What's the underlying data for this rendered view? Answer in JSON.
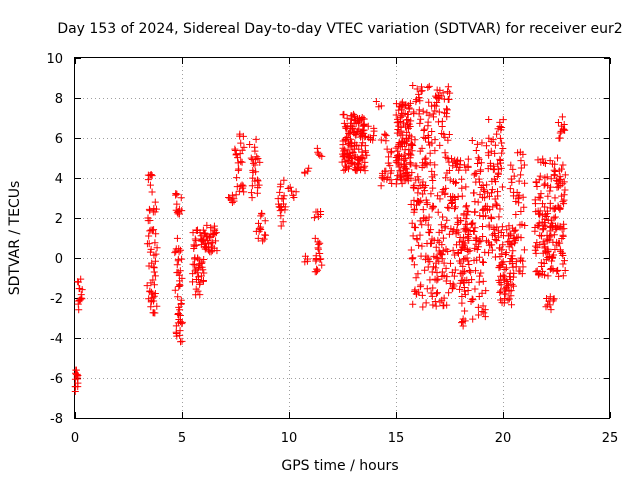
{
  "chart_data": {
    "type": "scatter",
    "title": "Day 153 of 2024, Sidereal Day-to-day VTEC variation (SDTVAR) for receiver eur2",
    "xlabel": "GPS time / hours",
    "ylabel": "SDTVAR / TECUs",
    "xlim": [
      0,
      25
    ],
    "ylim": [
      -8,
      10
    ],
    "xticks": [
      0,
      5,
      10,
      15,
      20,
      25
    ],
    "yticks": [
      -8,
      -6,
      -4,
      -2,
      0,
      2,
      4,
      6,
      8,
      10
    ],
    "grid": true,
    "marker": "+",
    "color": "#ff0000",
    "series": [
      {
        "name": "SDTVAR",
        "clusters": [
          {
            "x": [
              0.0,
              0.15
            ],
            "y": [
              -6.8,
              -5.6
            ],
            "n": 14
          },
          {
            "x": [
              0.1,
              0.35
            ],
            "y": [
              -2.6,
              -0.9
            ],
            "n": 14
          },
          {
            "x": [
              3.4,
              3.8
            ],
            "y": [
              -2.8,
              4.3
            ],
            "n": 60
          },
          {
            "x": [
              4.7,
              5.0
            ],
            "y": [
              -4.3,
              3.3
            ],
            "n": 55
          },
          {
            "x": [
              5.5,
              6.1
            ],
            "y": [
              -1.9,
              1.4
            ],
            "n": 60
          },
          {
            "x": [
              6.1,
              6.6
            ],
            "y": [
              0.3,
              2.2
            ],
            "n": 30
          },
          {
            "x": [
              7.2,
              7.5
            ],
            "y": [
              2.3,
              3.3
            ],
            "n": 8
          },
          {
            "x": [
              7.5,
              7.9
            ],
            "y": [
              3.3,
              6.2
            ],
            "n": 25
          },
          {
            "x": [
              8.2,
              8.6
            ],
            "y": [
              3.0,
              6.0
            ],
            "n": 25
          },
          {
            "x": [
              8.5,
              8.9
            ],
            "y": [
              0.8,
              2.3
            ],
            "n": 15
          },
          {
            "x": [
              9.5,
              9.8
            ],
            "y": [
              1.5,
              3.9
            ],
            "n": 20
          },
          {
            "x": [
              10.0,
              10.3
            ],
            "y": [
              3.0,
              3.6
            ],
            "n": 6
          },
          {
            "x": [
              10.7,
              10.9
            ],
            "y": [
              -0.2,
              0.2
            ],
            "n": 4
          },
          {
            "x": [
              10.7,
              10.9
            ],
            "y": [
              4.2,
              4.6
            ],
            "n": 4
          },
          {
            "x": [
              11.2,
              11.5
            ],
            "y": [
              -0.7,
              1.0
            ],
            "n": 18
          },
          {
            "x": [
              11.2,
              11.5
            ],
            "y": [
              2.0,
              2.5
            ],
            "n": 6
          },
          {
            "x": [
              11.3,
              11.5
            ],
            "y": [
              5.0,
              5.5
            ],
            "n": 5
          },
          {
            "x": [
              12.5,
              13.6
            ],
            "y": [
              4.3,
              7.2
            ],
            "n": 150
          },
          {
            "x": [
              13.7,
              14.0
            ],
            "y": [
              5.8,
              6.6
            ],
            "n": 8
          },
          {
            "x": [
              14.1,
              14.3
            ],
            "y": [
              7.4,
              7.9
            ],
            "n": 3
          },
          {
            "x": [
              14.3,
              14.8
            ],
            "y": [
              3.6,
              6.2
            ],
            "n": 25
          },
          {
            "x": [
              15.0,
              15.7
            ],
            "y": [
              3.7,
              7.8
            ],
            "n": 120
          },
          {
            "x": [
              15.7,
              17.5
            ],
            "y": [
              -2.5,
              8.7
            ],
            "n": 260
          },
          {
            "x": [
              17.5,
              18.4
            ],
            "y": [
              -1.7,
              5.0
            ],
            "n": 100
          },
          {
            "x": [
              18.0,
              19.2
            ],
            "y": [
              -3.5,
              2.5
            ],
            "n": 80
          },
          {
            "x": [
              18.6,
              19.3
            ],
            "y": [
              2.0,
              6.0
            ],
            "n": 40
          },
          {
            "x": [
              19.3,
              20.0
            ],
            "y": [
              0.0,
              7.0
            ],
            "n": 80
          },
          {
            "x": [
              19.8,
              20.5
            ],
            "y": [
              -2.4,
              1.5
            ],
            "n": 60
          },
          {
            "x": [
              20.3,
              21.0
            ],
            "y": [
              -1.0,
              5.5
            ],
            "n": 60
          },
          {
            "x": [
              21.5,
              22.9
            ],
            "y": [
              -1.0,
              5.0
            ],
            "n": 180
          },
          {
            "x": [
              22.0,
              22.4
            ],
            "y": [
              -2.6,
              -1.9
            ],
            "n": 10
          },
          {
            "x": [
              22.6,
              22.9
            ],
            "y": [
              5.8,
              7.2
            ],
            "n": 12
          }
        ]
      }
    ]
  }
}
